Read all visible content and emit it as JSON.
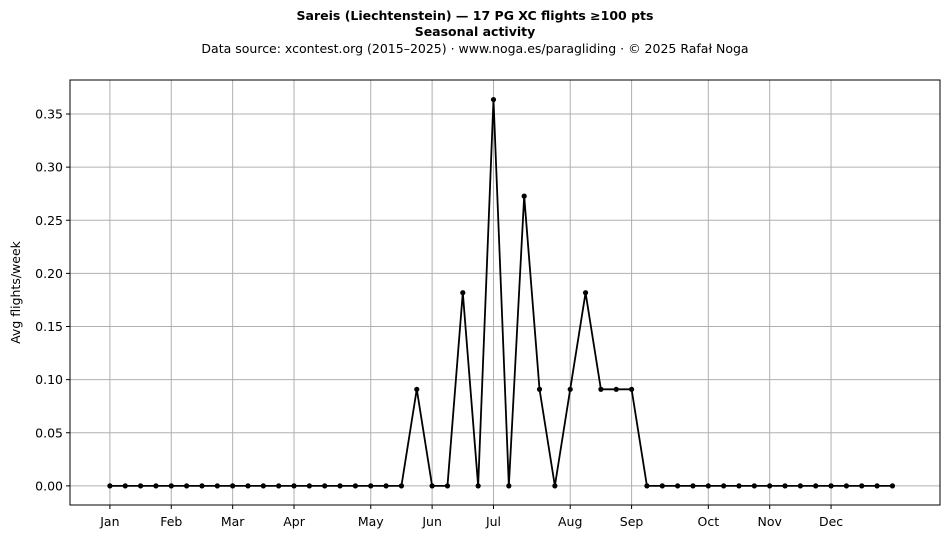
{
  "header": {
    "title": "Sareis (Liechtenstein)  —  17 PG XC flights ≥100 pts",
    "subtitle": "Seasonal activity",
    "source": "Data source: xcontest.org (2015–2025)  ·  www.noga.es/paragliding  ·  © 2025 Rafał Noga"
  },
  "chart_data": {
    "type": "line",
    "title": "Sareis (Liechtenstein)  —  17 PG XC flights ≥100 pts",
    "subtitle": "Seasonal activity",
    "xlabel": "",
    "ylabel": "Avg flights/week",
    "x_unit": "week of year",
    "x": [
      1,
      2,
      3,
      4,
      5,
      6,
      7,
      8,
      9,
      10,
      11,
      12,
      13,
      14,
      15,
      16,
      17,
      18,
      19,
      20,
      21,
      22,
      23,
      24,
      25,
      26,
      27,
      28,
      29,
      30,
      31,
      32,
      33,
      34,
      35,
      36,
      37,
      38,
      39,
      40,
      41,
      42,
      43,
      44,
      45,
      46,
      47,
      48,
      49,
      50,
      51,
      52
    ],
    "y": [
      0,
      0,
      0,
      0,
      0,
      0,
      0,
      0,
      0,
      0,
      0,
      0,
      0,
      0,
      0,
      0,
      0,
      0,
      0,
      0,
      0.0909,
      0,
      0,
      0.1818,
      0,
      0.3636,
      0,
      0.2727,
      0.0909,
      0,
      0.0909,
      0.1818,
      0.0909,
      0.0909,
      0.0909,
      0,
      0,
      0,
      0,
      0,
      0,
      0,
      0,
      0,
      0,
      0,
      0,
      0,
      0,
      0,
      0,
      0
    ],
    "xlim": [
      -1.6,
      55.1
    ],
    "ylim": [
      -0.018,
      0.382
    ],
    "xticks": [
      {
        "x": 1,
        "label": "Jan"
      },
      {
        "x": 5,
        "label": "Feb"
      },
      {
        "x": 9,
        "label": "Mar"
      },
      {
        "x": 13,
        "label": "Apr"
      },
      {
        "x": 18,
        "label": "May"
      },
      {
        "x": 22,
        "label": "Jun"
      },
      {
        "x": 26,
        "label": "Jul"
      },
      {
        "x": 31,
        "label": "Aug"
      },
      {
        "x": 35,
        "label": "Sep"
      },
      {
        "x": 40,
        "label": "Oct"
      },
      {
        "x": 44,
        "label": "Nov"
      },
      {
        "x": 48,
        "label": "Dec"
      }
    ],
    "yticks": [
      {
        "y": 0.0,
        "label": "0.00"
      },
      {
        "y": 0.05,
        "label": "0.05"
      },
      {
        "y": 0.1,
        "label": "0.10"
      },
      {
        "y": 0.15,
        "label": "0.15"
      },
      {
        "y": 0.2,
        "label": "0.20"
      },
      {
        "y": 0.25,
        "label": "0.25"
      },
      {
        "y": 0.3,
        "label": "0.30"
      },
      {
        "y": 0.35,
        "label": "0.35"
      }
    ],
    "grid": true,
    "colors": {
      "line": "#000000",
      "grid": "#b0b0b0",
      "axes": "#000000"
    }
  }
}
